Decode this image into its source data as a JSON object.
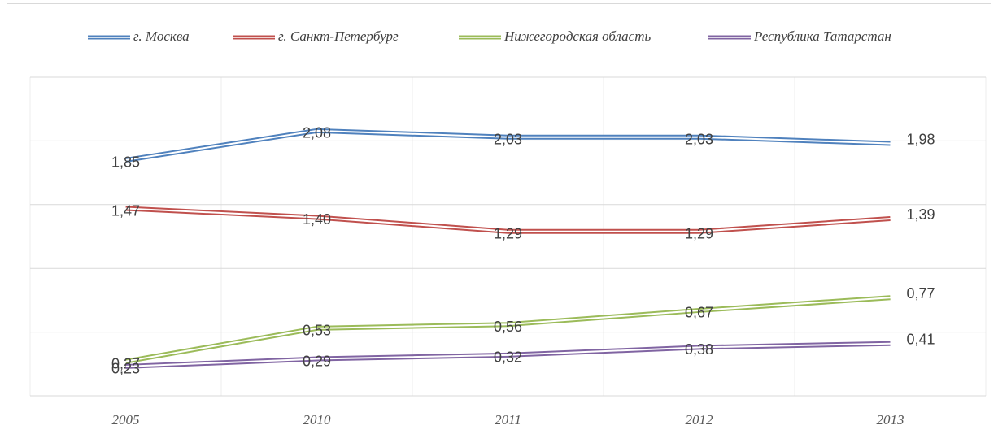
{
  "chart_data": {
    "type": "line",
    "categories": [
      "2005",
      "2010",
      "2011",
      "2012",
      "2013"
    ],
    "series": [
      {
        "name": "г. Москва",
        "color": "#4f81bd",
        "values": [
          1.85,
          2.08,
          2.03,
          2.03,
          1.98
        ],
        "value_labels": [
          "1,85",
          "2,08",
          "2,03",
          "2,03",
          "1,98"
        ]
      },
      {
        "name": "г. Санкт-Петербург",
        "color": "#c0504d",
        "values": [
          1.47,
          1.4,
          1.29,
          1.29,
          1.39
        ],
        "value_labels": [
          "1,47",
          "1,40",
          "1,29",
          "1,29",
          "1,39"
        ]
      },
      {
        "name": "Нижегородская область",
        "color": "#9bbb59",
        "values": [
          0.27,
          0.53,
          0.56,
          0.67,
          0.77
        ],
        "value_labels": [
          "0,27",
          "0,53",
          "0,56",
          "0,67",
          "0,77"
        ]
      },
      {
        "name": "Республика Татарстан",
        "color": "#8064a2",
        "values": [
          0.23,
          0.29,
          0.32,
          0.38,
          0.41
        ],
        "value_labels": [
          "0,23",
          "0,29",
          "0,32",
          "0,38",
          "0,41"
        ]
      }
    ],
    "ylim": [
      0,
      2.5
    ],
    "yticks": [
      0,
      0.5,
      1,
      1.5,
      2,
      2.5
    ],
    "grid": true,
    "legend": "top"
  }
}
